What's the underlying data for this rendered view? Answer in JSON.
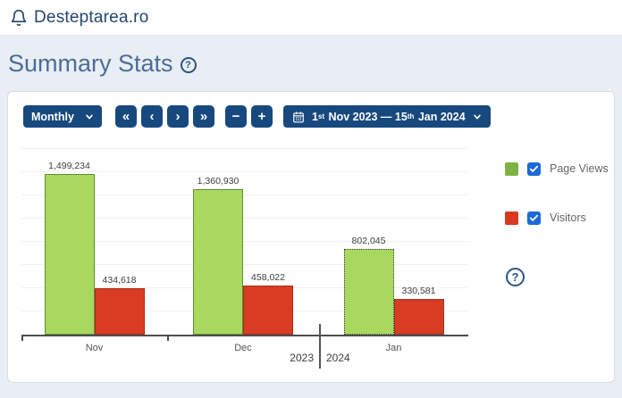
{
  "header": {
    "title": "Desteptarea.ro"
  },
  "page": {
    "heading": "Summary Stats"
  },
  "icons": {
    "help": "?"
  },
  "toolbar": {
    "period": {
      "label": "Monthly"
    },
    "nav": {
      "first": "«",
      "prev": "‹",
      "next": "›",
      "last": "»"
    },
    "zoom": {
      "out": "−",
      "in": "+"
    },
    "date_range": {
      "d1": "1",
      "s1": "st",
      "m1": " Nov 2023 ",
      "dash": "— ",
      "d2": "15",
      "s2": "th",
      "m2": " Jan 2024"
    }
  },
  "legend": {
    "items": [
      {
        "label": "Page Views",
        "checked": true,
        "color": "#7cb342"
      },
      {
        "label": "Visitors",
        "checked": true,
        "color": "#d9391f"
      }
    ]
  },
  "chart_data": {
    "type": "bar",
    "categories": [
      "Nov",
      "Dec",
      "Jan"
    ],
    "series": [
      {
        "name": "Page Views",
        "values": [
          1499234,
          1360930,
          802045
        ],
        "labels": [
          "1,499,234",
          "1,360,930",
          "802,045"
        ],
        "fill": "#a8d95e",
        "border": "#5d8f31"
      },
      {
        "name": "Visitors",
        "values": [
          434618,
          458022,
          330581
        ],
        "labels": [
          "434,618",
          "458,022",
          "330,581"
        ],
        "fill": "#d93b23",
        "border": "#a82c15"
      }
    ],
    "partial_categories": [
      "Jan"
    ],
    "year_break": {
      "left_year": "2023",
      "right_year": "2024",
      "after_category": "Dec"
    },
    "ylim": [
      0,
      1550000
    ],
    "grid": true,
    "legend_position": "right"
  }
}
